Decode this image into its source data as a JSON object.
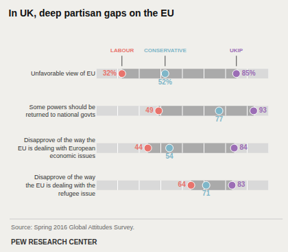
{
  "chart_data": {
    "type": "scatter",
    "title": "In UK, deep partisan gaps on the EU",
    "orientation": "horizontal",
    "categories": [
      "Unfavorable view of EU",
      "Some powers should be\nreturned to national govts",
      "Disapprove of the way the\nEU is dealing with European\neconomic issues",
      "Disapprove of the way\nthe EU is dealing with the\nrefugee issue"
    ],
    "series": [
      {
        "name": "LABOUR",
        "color": "#E8736C",
        "values": [
          32,
          49,
          44,
          64
        ],
        "value_labels": [
          "32%",
          "49",
          "44",
          "64"
        ]
      },
      {
        "name": "CONSERVATIVE",
        "color": "#7EB6C8",
        "values": [
          52,
          77,
          54,
          71
        ],
        "value_labels": [
          "52%",
          "77",
          "54",
          "71"
        ]
      },
      {
        "name": "UKIP",
        "color": "#9B6DB5",
        "values": [
          85,
          93,
          84,
          83
        ],
        "value_labels": [
          "85%",
          "93",
          "84",
          "83"
        ]
      }
    ],
    "xlim": [
      20,
      100
    ],
    "xticks": [
      20,
      30,
      40,
      50,
      60,
      70,
      80,
      90,
      100
    ],
    "grid": true,
    "data_labels": true,
    "tick_labels": "y",
    "annotations": [
      "Source: Spring 2016 Global Attitudes Survey.",
      "PEW RESEARCH CENTER"
    ]
  }
}
